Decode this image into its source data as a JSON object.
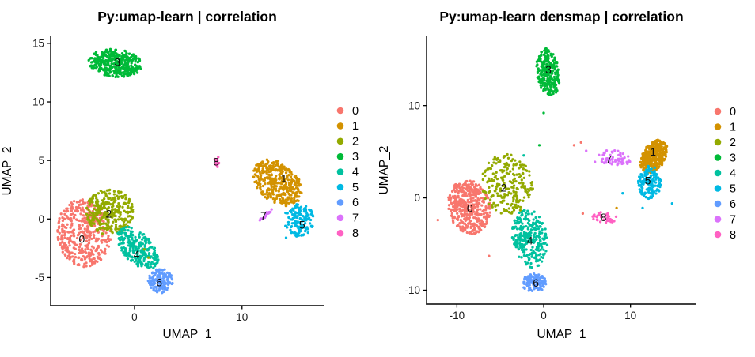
{
  "figure": {
    "background": "#ffffff",
    "axis_color": "#000000",
    "n_panels": 2
  },
  "palette": {
    "0": "#F8766D",
    "1": "#D39200",
    "2": "#93AA00",
    "3": "#00BA38",
    "4": "#00C19F",
    "5": "#00B9E3",
    "6": "#619CFF",
    "7": "#DB72FB",
    "8": "#FF61C3"
  },
  "chart_data": [
    {
      "type": "scatter",
      "title": "Py:umap-learn | correlation",
      "xlabel": "UMAP_1",
      "ylabel": "UMAP_2",
      "xlim": [
        -7.8,
        17.6
      ],
      "ylim": [
        -7.4,
        15.6
      ],
      "xticks": [
        0,
        10
      ],
      "yticks": [
        -5,
        0,
        5,
        10,
        15
      ],
      "grid": false,
      "legend_position": "right",
      "legend_labels": [
        "0",
        "1",
        "2",
        "3",
        "4",
        "5",
        "6",
        "7",
        "8"
      ],
      "clusters": [
        {
          "label": "0",
          "cx": -4.7,
          "cy": -1.2,
          "rx": 2.5,
          "ry": 2.9,
          "tilt": 10,
          "n": 420,
          "lx": -4.9,
          "ly": -1.7
        },
        {
          "label": "1",
          "cx": 13.3,
          "cy": 3.1,
          "rx": 2.5,
          "ry": 1.7,
          "tilt": -35,
          "n": 380,
          "lx": 13.9,
          "ly": 3.5
        },
        {
          "label": "2",
          "cx": -2.3,
          "cy": 0.6,
          "rx": 2.2,
          "ry": 2.0,
          "tilt": 0,
          "n": 300,
          "lx": -2.4,
          "ly": 0.45
        },
        {
          "label": "3",
          "cx": -1.8,
          "cy": 13.3,
          "rx": 2.5,
          "ry": 1.2,
          "tilt": -5,
          "n": 380,
          "lx": -1.6,
          "ly": 13.4
        },
        {
          "label": "4",
          "cx": 0.3,
          "cy": -2.5,
          "rx": 2.3,
          "ry": 1.3,
          "tilt": -42,
          "n": 260,
          "lx": 0.2,
          "ly": -3.0
        },
        {
          "label": "5",
          "cx": 15.3,
          "cy": -0.1,
          "rx": 1.4,
          "ry": 1.4,
          "tilt": -30,
          "n": 160,
          "lx": 15.6,
          "ly": -0.5
        },
        {
          "label": "6",
          "cx": 2.4,
          "cy": -5.3,
          "rx": 1.15,
          "ry": 1.05,
          "tilt": 0,
          "n": 140,
          "lx": 2.3,
          "ly": -5.4
        },
        {
          "label": "7",
          "cx": 12.2,
          "cy": 0.35,
          "rx": 0.75,
          "ry": 0.14,
          "tilt": 40,
          "n": 20,
          "lx": 12.0,
          "ly": 0.3
        },
        {
          "label": "8",
          "cx": 7.6,
          "cy": 4.9,
          "rx": 0.28,
          "ry": 0.55,
          "tilt": 0,
          "n": 12,
          "lx": 7.6,
          "ly": 4.9
        }
      ],
      "outliers": [
        [
          0.9,
          -2.6,
          "2"
        ],
        [
          1.3,
          -3.3,
          "2"
        ],
        [
          13.6,
          1.4,
          "1"
        ],
        [
          14.1,
          -1.6,
          "5"
        ]
      ]
    },
    {
      "type": "scatter",
      "title": "Py:umap-learn densmap | correlation",
      "xlabel": "UMAP_1",
      "ylabel": "UMAP_2",
      "xlim": [
        -13.5,
        17.6
      ],
      "ylim": [
        -11.5,
        17.5
      ],
      "xticks": [
        -10,
        0,
        10
      ],
      "yticks": [
        -10,
        0,
        10
      ],
      "grid": false,
      "legend_position": "right",
      "legend_labels": [
        "0",
        "1",
        "2",
        "3",
        "4",
        "5",
        "6",
        "7",
        "8"
      ],
      "clusters": [
        {
          "label": "0",
          "cx": -8.6,
          "cy": -1.0,
          "rx": 2.4,
          "ry": 3.0,
          "tilt": 15,
          "n": 430,
          "lx": -8.5,
          "ly": -1.1
        },
        {
          "label": "1",
          "cx": 12.7,
          "cy": 4.5,
          "rx": 2.0,
          "ry": 1.3,
          "tilt": 55,
          "n": 380,
          "lx": 12.6,
          "ly": 5.0
        },
        {
          "label": "2",
          "cx": -4.2,
          "cy": 1.5,
          "rx": 3.0,
          "ry": 3.3,
          "tilt": 10,
          "n": 240,
          "lx": -4.6,
          "ly": 1.1
        },
        {
          "label": "3",
          "cx": 0.5,
          "cy": 13.6,
          "rx": 1.3,
          "ry": 2.6,
          "tilt": 8,
          "n": 260,
          "lx": 0.55,
          "ly": 13.9
        },
        {
          "label": "4",
          "cx": -1.6,
          "cy": -4.4,
          "rx": 2.0,
          "ry": 3.2,
          "tilt": 10,
          "n": 280,
          "lx": -1.6,
          "ly": -4.6
        },
        {
          "label": "5",
          "cx": 12.2,
          "cy": 1.7,
          "rx": 1.3,
          "ry": 1.8,
          "tilt": 0,
          "n": 150,
          "lx": 12.0,
          "ly": 1.9
        },
        {
          "label": "6",
          "cx": -1.1,
          "cy": -9.2,
          "rx": 1.4,
          "ry": 1.0,
          "tilt": 0,
          "n": 120,
          "lx": -0.9,
          "ly": -9.2
        },
        {
          "label": "7",
          "cx": 8.1,
          "cy": 4.3,
          "rx": 1.9,
          "ry": 0.85,
          "tilt": -8,
          "n": 60,
          "lx": 7.5,
          "ly": 4.2
        },
        {
          "label": "8",
          "cx": 7.0,
          "cy": -2.1,
          "rx": 1.5,
          "ry": 0.6,
          "tilt": -5,
          "n": 40,
          "lx": 6.9,
          "ly": -2.1
        }
      ],
      "outliers": [
        [
          -12.2,
          -2.4,
          "0"
        ],
        [
          3.5,
          5.7,
          "0"
        ],
        [
          4.3,
          6.0,
          "0"
        ],
        [
          4.9,
          5.1,
          "7"
        ],
        [
          4.5,
          -1.7,
          "0"
        ],
        [
          8.4,
          -1.1,
          "1"
        ],
        [
          0.0,
          9.2,
          "3"
        ],
        [
          9.1,
          0.5,
          "5"
        ],
        [
          11.4,
          -1.1,
          "5"
        ],
        [
          14.8,
          -0.6,
          "5"
        ],
        [
          5.9,
          3.9,
          "7"
        ],
        [
          -0.5,
          5.7,
          "3"
        ],
        [
          -2.3,
          4.6,
          "4"
        ],
        [
          -6.3,
          -6.3,
          "0"
        ]
      ]
    }
  ]
}
